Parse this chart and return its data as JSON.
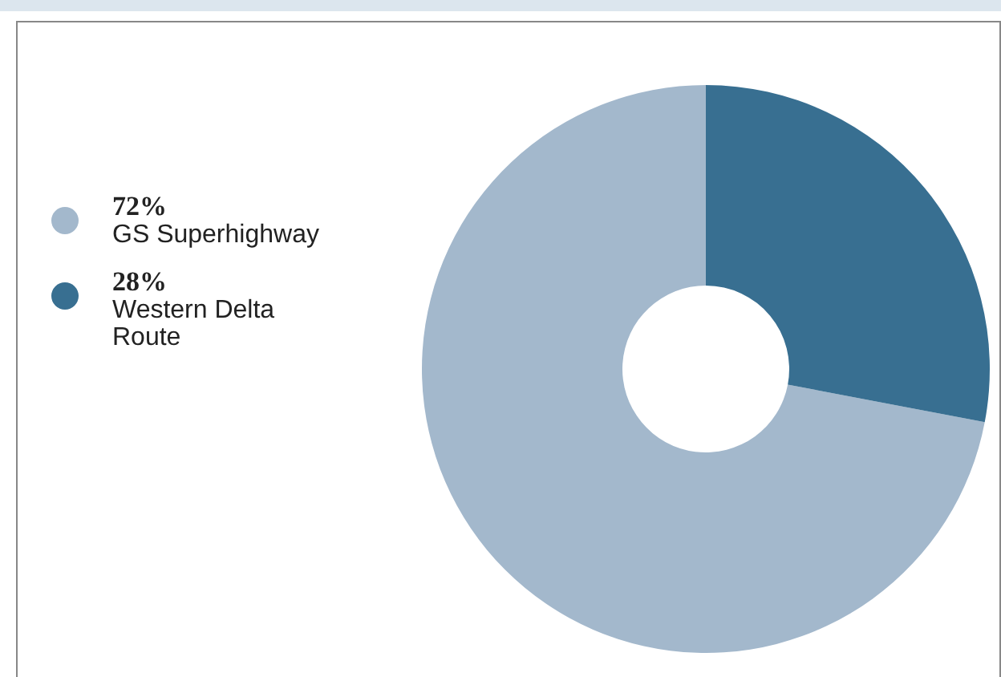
{
  "chart_data": {
    "type": "donut",
    "categories": [
      "GS Superhighway",
      "Western Delta Route"
    ],
    "values": [
      72,
      28
    ],
    "colors": [
      "#a3b8cc",
      "#386f91"
    ],
    "value_labels": [
      "72%",
      "28%"
    ],
    "legend": "left"
  }
}
